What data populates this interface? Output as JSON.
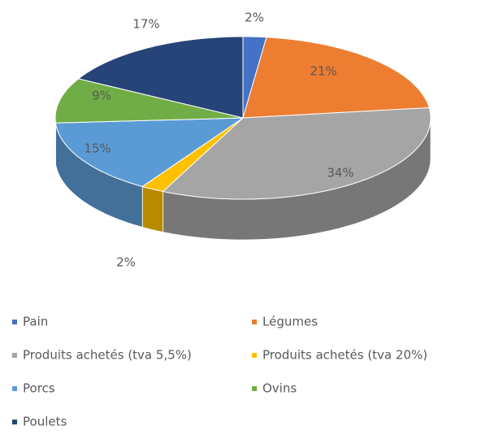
{
  "chart_data": {
    "type": "pie3d",
    "categories": [
      "Pain",
      "Légumes",
      "Produits achetés (tva 5,5%)",
      "Produits achetés (tva 20%)",
      "Porcs",
      "Ovins",
      "Poulets"
    ],
    "values": [
      2,
      21,
      34,
      2,
      15,
      9,
      17
    ],
    "value_labels": [
      "2%",
      "21%",
      "34%",
      "2%",
      "15%",
      "9%",
      "17%"
    ],
    "colors": [
      "#4472c4",
      "#ed7d31",
      "#a5a5a5",
      "#ffc000",
      "#5b9bd5",
      "#70ad47",
      "#264478"
    ],
    "legend": "bottom"
  }
}
